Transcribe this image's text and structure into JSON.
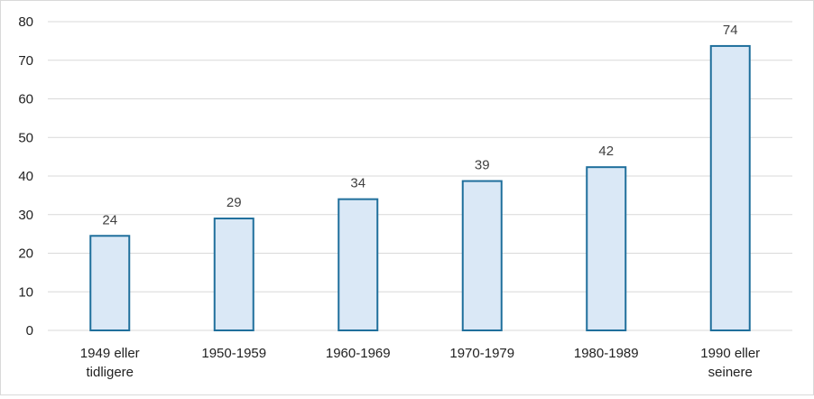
{
  "chart_data": {
    "type": "bar",
    "categories": [
      [
        "1949 eller",
        "tidligere"
      ],
      [
        "1950-1959"
      ],
      [
        "1960-1969"
      ],
      [
        "1970-1979"
      ],
      [
        "1980-1989"
      ],
      [
        "1990 eller",
        "seinere"
      ]
    ],
    "values": [
      24.5,
      29,
      34,
      38.7,
      42.3,
      73.7
    ],
    "data_labels": [
      "24",
      "29",
      "34",
      "39",
      "42",
      "74"
    ],
    "y_ticks": [
      "0",
      "10",
      "20",
      "30",
      "40",
      "50",
      "60",
      "70",
      "80"
    ],
    "ylim": [
      0,
      80
    ],
    "title": "",
    "xlabel": "",
    "ylabel": "",
    "grid": true,
    "legend": "none",
    "colors": {
      "bar_fill": "#dae8f6",
      "bar_stroke": "#1f6f9c",
      "grid": "#d9d9d9"
    }
  }
}
